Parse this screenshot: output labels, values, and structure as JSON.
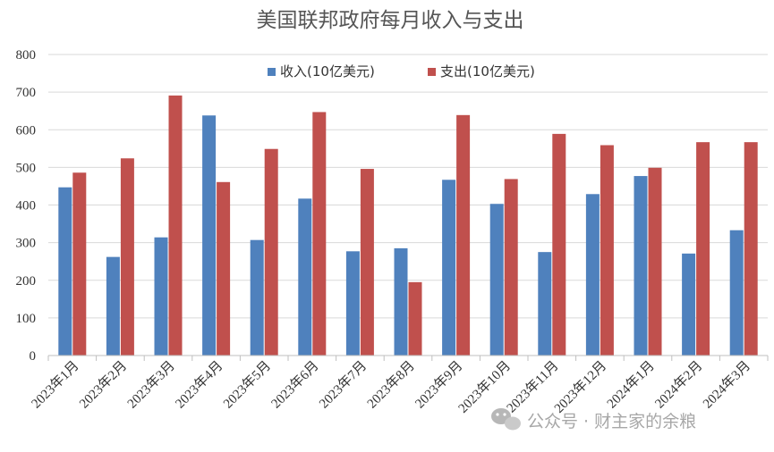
{
  "chart_data": {
    "type": "bar",
    "title": "美国联邦政府每月收入与支出",
    "categories": [
      "2023年1月",
      "2023年2月",
      "2023年3月",
      "2023年4月",
      "2023年5月",
      "2023年6月",
      "2023年7月",
      "2023年8月",
      "2023年9月",
      "2023年10月",
      "2023年11月",
      "2023年12月",
      "2024年1月",
      "2024年2月",
      "2024年3月"
    ],
    "series": [
      {
        "name": "收入(10亿美元)",
        "color": "#4f81bd",
        "values": [
          447,
          262,
          314,
          638,
          307,
          417,
          277,
          285,
          467,
          403,
          275,
          429,
          477,
          271,
          333
        ]
      },
      {
        "name": "支出(10亿美元)",
        "color": "#c0504d",
        "values": [
          486,
          524,
          691,
          461,
          549,
          647,
          496,
          195,
          639,
          469,
          589,
          559,
          499,
          567,
          567
        ]
      }
    ],
    "ylim": [
      0,
      800
    ],
    "yticks": [
      0,
      100,
      200,
      300,
      400,
      500,
      600,
      700,
      800
    ],
    "grid": true,
    "legend": "top"
  },
  "watermark": {
    "text": "公众号 · 财主家的余粮",
    "icon": "wechat-icon"
  }
}
